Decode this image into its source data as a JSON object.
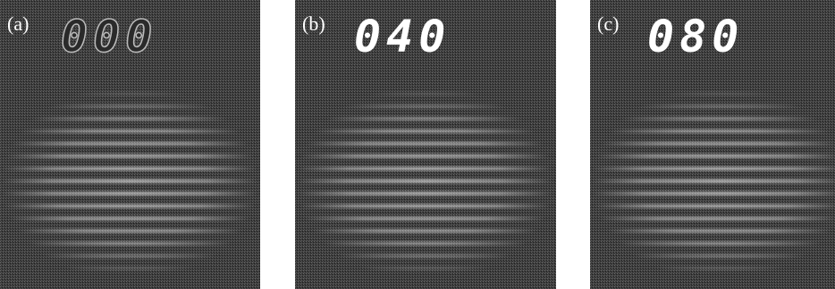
{
  "panels": [
    {
      "label": "(a)",
      "display": "000"
    },
    {
      "label": "(b)",
      "display": "040"
    },
    {
      "label": "(c)",
      "display": "080"
    }
  ]
}
